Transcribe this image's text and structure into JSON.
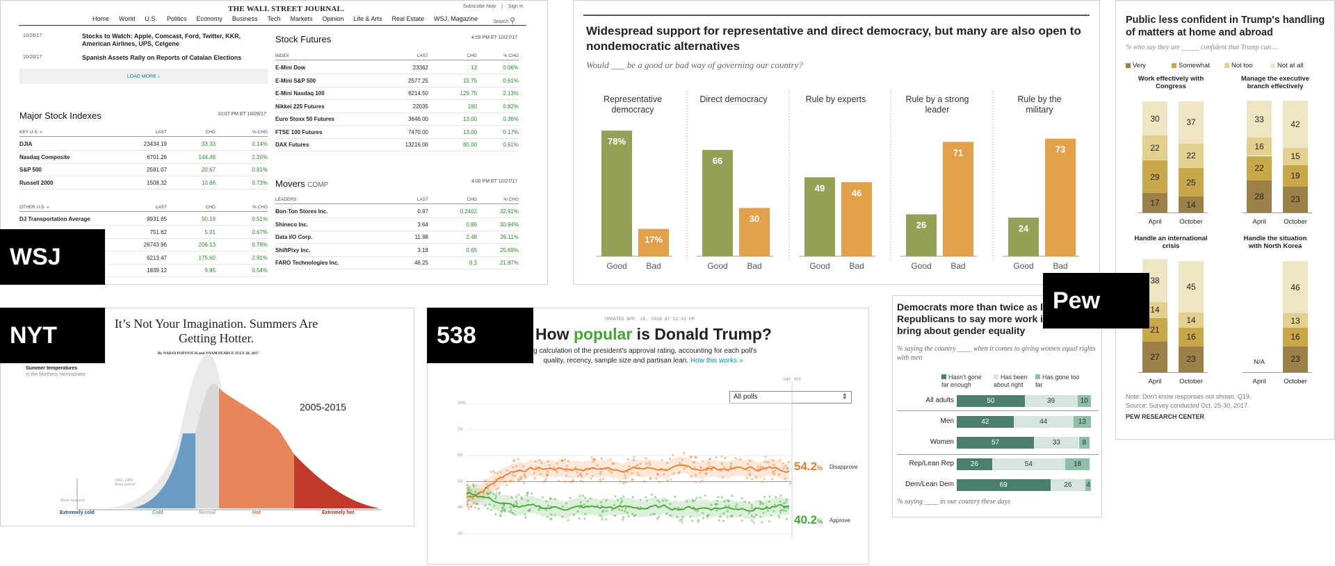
{
  "tags": {
    "wsj": "WSJ",
    "nyt": "NYT",
    "f538": "538",
    "pew": "Pew"
  },
  "wsj": {
    "masthead": "THE WALL STREET JOURNAL.",
    "nav": [
      "Home",
      "World",
      "U.S.",
      "Politics",
      "Economy",
      "Business",
      "Tech",
      "Markets",
      "Opinion",
      "Life & Arts",
      "Real Estate",
      "WSJ. Magazine"
    ],
    "subscribe": "Subscribe Now",
    "signin": "Sign In",
    "search": "Search",
    "news": [
      {
        "date": "10/26/17",
        "text": "Stocks to Watch: Apple, Comcast, Ford, Twitter, KKR, American Airlines, UPS, Celgene"
      },
      {
        "date": "10/26/17",
        "text": "Spanish Assets Rally on Reports of Catalan Elections"
      }
    ],
    "load_more": "LOAD MORE ↓",
    "indexes": {
      "title": "Major Stock Indexes",
      "ts": "10:07 PM ET 10/26/17",
      "key_head": "KEY U.S. »",
      "other_head": "OTHER U.S. »",
      "cols": [
        "LAST",
        "CHG",
        "% CHG"
      ],
      "key_rows": [
        [
          "DJIA",
          "23434.19",
          "33.33",
          "0.14%"
        ],
        [
          "Nasdaq Composite",
          "6701.26",
          "144.49",
          "2.20%"
        ],
        [
          "S&P 500",
          "2581.07",
          "20.67",
          "0.81%"
        ],
        [
          "Russell 2000",
          "1508.32",
          "10.86",
          "0.73%"
        ]
      ],
      "other_rows": [
        [
          "DJ Transportation Average",
          "9931.65",
          "50.19",
          "0.51%"
        ],
        [
          "",
          "751.62",
          "5.01",
          "0.67%"
        ],
        [
          "",
          "26743.96",
          "206.13",
          "0.78%"
        ],
        [
          "",
          "6213.47",
          "175.60",
          "2.91%"
        ],
        [
          "",
          "1839.12",
          "9.85",
          "0.54%"
        ]
      ]
    },
    "futures": {
      "title": "Stock Futures",
      "ts": "4:59 PM ET 10/27/17",
      "cols": [
        "INDEX",
        "LAST",
        "CHG",
        "% CHG"
      ],
      "rows": [
        [
          "E-Mini Dow",
          "23362",
          "13",
          "0.06%"
        ],
        [
          "E-Mini S&P 500",
          "2577.25",
          "15.75",
          "0.61%"
        ],
        [
          "E-Mini Nasdaq 100",
          "6214.50",
          "129.75",
          "2.13%"
        ],
        [
          "Nikkei 225 Futures",
          "22035",
          "180",
          "0.82%"
        ],
        [
          "Euro Stoxx 50 Futures",
          "3646.00",
          "13.00",
          "0.36%"
        ],
        [
          "FTSE 100 Futures",
          "7470.00",
          "13.00",
          "0.17%"
        ],
        [
          "DAX Futures",
          "13216.00",
          "80.00",
          "0.61%"
        ]
      ]
    },
    "movers": {
      "title": "Movers",
      "comp": "COMP",
      "ts": "4:00 PM ET 10/27/17",
      "cols": [
        "LEADERS",
        "LAST",
        "CHG",
        "% CHG"
      ],
      "rows": [
        [
          "Bon-Ton Stores Inc.",
          "0.97",
          "0.2402",
          "32.91%"
        ],
        [
          "Shineco Inc.",
          "3.64",
          "0.86",
          "30.94%"
        ],
        [
          "Data I/O Corp.",
          "11.98",
          "2.48",
          "26.11%"
        ],
        [
          "ShiftPixy Inc.",
          "3.18",
          "0.65",
          "25.69%"
        ],
        [
          "FARO Technologies Inc.",
          "46.25",
          "8.3",
          "21.87%"
        ]
      ]
    }
  },
  "nyt": {
    "title": "It’s Not Your Imagination. Summers Are Getting Hotter.",
    "byline": "By NADJA POPOVICH and ADAM PEARCE   JULY 28, 2017",
    "label1": "Summer temperatures",
    "label2": "in the Northern Hemisphere",
    "period": "2005-2015",
    "base": "1951-1980 Base period",
    "more": "More frequent",
    "bins": [
      "Extremely cold",
      "Cold",
      "Normal",
      "Hot",
      "Extremely hot"
    ],
    "colors": {
      "cold": "#6a9cc3",
      "normal": "#d8d8d8",
      "hot": "#e8865a",
      "xhot": "#c0392b",
      "xcold": "#1f4f7a",
      "hotlabel": "#e06a2c",
      "xhotlabel": "#b22a1f"
    }
  },
  "f538": {
    "updated": "UPDATED APR. 18, 2018 AT 12:41 PM",
    "title_a": "How ",
    "title_b": "popular",
    "title_c": " is Donald Trump?",
    "sub": "ng calculation of the president's approval rating, accounting for each poll's quality, recency, sample size and partisan lean.",
    "link": "How this works »",
    "select": "All polls",
    "day": "DAY 455",
    "yticks": [
      "80%",
      "70",
      "60",
      "50",
      "40",
      "30"
    ],
    "disapprove": {
      "value": "54.2",
      "label": "Disapprove",
      "color": "#f07c2a"
    },
    "approve": {
      "value": "40.2",
      "label": "Approve",
      "color": "#3ea833"
    }
  },
  "pew1": {
    "title": "Widespread support for representative and direct democracy, but many are also open to nondemocratic alternatives",
    "sub": "Would ___ be a good or bad way of governing our country?",
    "chart_data": {
      "type": "bar",
      "groups": [
        "Representative democracy",
        "Direct democracy",
        "Rule by experts",
        "Rule by a strong leader",
        "Rule by the military"
      ],
      "series": [
        {
          "name": "Good",
          "values": [
            78,
            66,
            49,
            26,
            24
          ],
          "labels": [
            "78%",
            "66",
            "49",
            "26",
            "24"
          ]
        },
        {
          "name": "Bad",
          "values": [
            17,
            30,
            46,
            71,
            73
          ],
          "labels": [
            "17%",
            "30",
            "46",
            "71",
            "73"
          ]
        }
      ],
      "colors": {
        "good": "#97a057",
        "bad": "#e2a04a"
      }
    }
  },
  "pew2": {
    "title": "Democrats more than twice as likely as Republicans to say more work is needed to bring about gender equality",
    "sub": "% saying the country ____ when it comes to giving women equal rights with men",
    "legend": [
      "Hasn't gone far enough",
      "Has been about right",
      "Has gone too far"
    ],
    "chart_data": {
      "type": "bar",
      "rows": [
        "All adults",
        "Men",
        "Women",
        "Rep/Lean Rep",
        "Dem/Lean Dem"
      ],
      "series": [
        {
          "name": "Hasn't gone far enough",
          "values": [
            50,
            42,
            57,
            26,
            69
          ]
        },
        {
          "name": "Has been about right",
          "values": [
            39,
            44,
            33,
            54,
            26
          ]
        },
        {
          "name": "Has gone too far",
          "values": [
            10,
            13,
            8,
            18,
            4
          ]
        }
      ],
      "colors": [
        "#4b7f6b",
        "#d6e6df",
        "#8dbfa8"
      ]
    },
    "foot": "% saying ____ in our country these days"
  },
  "pew3": {
    "title": "Public less confident in Trump's handling of matters at home and abroad",
    "sub": "% who say they are _____ confident that Trump can ...",
    "legend": [
      "Very",
      "Somewhat",
      "Not too",
      "Not at all"
    ],
    "colors": [
      "#9b8148",
      "#c8a848",
      "#e3d08f",
      "#efe5c2"
    ],
    "chart_data": {
      "type": "bar",
      "panels": [
        {
          "title": "Work effectively with Congress",
          "cats": [
            "April",
            "October"
          ],
          "values": [
            [
              17,
              29,
              22,
              30
            ],
            [
              14,
              25,
              22,
              37
            ]
          ]
        },
        {
          "title": "Manage the executive branch effectively",
          "cats": [
            "April",
            "October"
          ],
          "values": [
            [
              28,
              22,
              16,
              33
            ],
            [
              23,
              19,
              15,
              42
            ]
          ]
        },
        {
          "title": "Handle an international crisis",
          "cats": [
            "April",
            "October"
          ],
          "values": [
            [
              27,
              21,
              14,
              38
            ],
            [
              23,
              16,
              14,
              45
            ]
          ]
        },
        {
          "title": "Handle the situation with North Korea",
          "cats": [
            "April",
            "October"
          ],
          "values": [
            null,
            [
              23,
              16,
              13,
              46
            ]
          ]
        }
      ]
    },
    "na": "N/A",
    "note1": "Note: Don't know responses not shown. Q19.",
    "note2": "Source: Survey conducted Oct. 25-30, 2017.",
    "credit": "PEW RESEARCH CENTER"
  }
}
